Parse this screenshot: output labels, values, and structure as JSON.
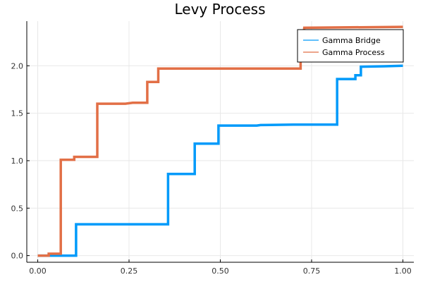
{
  "chart_data": {
    "type": "line",
    "title": "Levy Process",
    "xlabel": "",
    "ylabel": "",
    "xlim": [
      -0.03,
      1.03
    ],
    "ylim": [
      -0.07,
      2.47
    ],
    "xticks": [
      0.0,
      0.25,
      0.5,
      0.75,
      1.0
    ],
    "xtick_labels": [
      "0.00",
      "0.25",
      "0.50",
      "0.75",
      "1.00"
    ],
    "yticks": [
      0.0,
      0.5,
      1.0,
      1.5,
      2.0
    ],
    "ytick_labels": [
      "0.0",
      "0.5",
      "1.0",
      "1.5",
      "2.0"
    ],
    "grid": true,
    "legend_position": "top-right",
    "step": true,
    "series": [
      {
        "name": "Gamma Bridge",
        "color": "#009AFA",
        "points": [
          [
            0.0,
            0.0
          ],
          [
            0.105,
            0.0
          ],
          [
            0.105,
            0.33
          ],
          [
            0.2,
            0.33
          ],
          [
            0.357,
            0.33
          ],
          [
            0.357,
            0.86
          ],
          [
            0.43,
            0.86
          ],
          [
            0.43,
            1.18
          ],
          [
            0.495,
            1.18
          ],
          [
            0.495,
            1.37
          ],
          [
            0.6,
            1.37
          ],
          [
            0.61,
            1.375
          ],
          [
            0.7,
            1.38
          ],
          [
            0.82,
            1.38
          ],
          [
            0.82,
            1.86
          ],
          [
            0.87,
            1.86
          ],
          [
            0.87,
            1.9
          ],
          [
            0.885,
            1.9
          ],
          [
            0.885,
            1.99
          ],
          [
            0.95,
            1.995
          ],
          [
            1.0,
            2.0
          ]
        ]
      },
      {
        "name": "Gamma Process",
        "color": "#E26F46",
        "points": [
          [
            0.0,
            0.0
          ],
          [
            0.03,
            0.0
          ],
          [
            0.03,
            0.02
          ],
          [
            0.063,
            0.02
          ],
          [
            0.063,
            1.01
          ],
          [
            0.1,
            1.01
          ],
          [
            0.1,
            1.04
          ],
          [
            0.163,
            1.04
          ],
          [
            0.163,
            1.6
          ],
          [
            0.24,
            1.6
          ],
          [
            0.26,
            1.61
          ],
          [
            0.3,
            1.61
          ],
          [
            0.3,
            1.83
          ],
          [
            0.33,
            1.83
          ],
          [
            0.33,
            1.97
          ],
          [
            0.5,
            1.97
          ],
          [
            0.72,
            1.97
          ],
          [
            0.72,
            2.05
          ],
          [
            0.73,
            2.4
          ],
          [
            1.0,
            2.41
          ]
        ]
      }
    ]
  }
}
